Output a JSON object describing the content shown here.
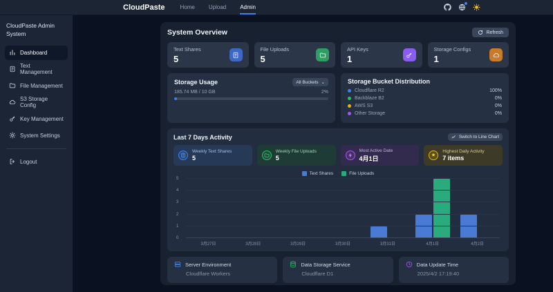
{
  "topnav": {
    "brand": "CloudPaste",
    "links": [
      {
        "label": "Home",
        "active": false
      },
      {
        "label": "Upload",
        "active": false
      },
      {
        "label": "Admin",
        "active": true
      }
    ],
    "icons": [
      "github-icon",
      "language-icon",
      "theme-sun-icon"
    ],
    "accent_color": "#3b82f6"
  },
  "sidebar": {
    "title": "CloudPaste Admin System",
    "items": [
      {
        "label": "Dashboard",
        "icon": "chart-bar-icon",
        "active": true
      },
      {
        "label": "Text Management",
        "icon": "document-icon",
        "active": false
      },
      {
        "label": "File Management",
        "icon": "folder-icon",
        "active": false
      },
      {
        "label": "S3 Storage Config",
        "icon": "cloud-icon",
        "active": false
      },
      {
        "label": "Key Management",
        "icon": "key-icon",
        "active": false
      },
      {
        "label": "System Settings",
        "icon": "gear-icon",
        "active": false
      }
    ],
    "logout_label": "Logout"
  },
  "overview": {
    "title": "System Overview",
    "refresh_label": "Refresh",
    "stats": [
      {
        "label": "Text Shares",
        "value": "5",
        "icon": "document-icon",
        "color": "#3e68c6"
      },
      {
        "label": "File Uploads",
        "value": "5",
        "icon": "folder-icon",
        "color": "#2f9e63"
      },
      {
        "label": "API Keys",
        "value": "1",
        "icon": "key-icon",
        "color": "#8a5cf0"
      },
      {
        "label": "Storage Configs",
        "value": "1",
        "icon": "cloud-icon",
        "color": "#c77b2b"
      }
    ]
  },
  "storage_usage": {
    "title": "Storage Usage",
    "bucket_filter": "All Buckets",
    "usage_text": "185.74 MB / 10 GB",
    "percent": 2,
    "percent_label": "2%"
  },
  "bucket_distribution": {
    "title": "Storage Bucket Distribution",
    "rows": [
      {
        "name": "Cloudflare R2",
        "percent": "100%",
        "color": "#3b82f6"
      },
      {
        "name": "Backblaze B2",
        "percent": "0%",
        "color": "#22c55e"
      },
      {
        "name": "AWS S3",
        "percent": "0%",
        "color": "#eab308"
      },
      {
        "name": "Other Storage",
        "percent": "0%",
        "color": "#a855f7"
      }
    ]
  },
  "activity": {
    "title": "Last 7 Days Activity",
    "switch_label": "Switch to Line Chart",
    "cards": [
      {
        "label": "Weekly Text Shares",
        "value": "5",
        "theme": "blue",
        "icon": "document-icon"
      },
      {
        "label": "Weekly File Uploads",
        "value": "5",
        "theme": "green",
        "icon": "folder-icon"
      },
      {
        "label": "Most Active Date",
        "value": "4月1日",
        "theme": "purple",
        "icon": "lightning-icon"
      },
      {
        "label": "Highest Daily Activity",
        "value": "7 items",
        "theme": "yellow",
        "icon": "trophy-icon"
      }
    ]
  },
  "chart_data": {
    "type": "bar",
    "title": "Last 7 Days Activity",
    "categories": [
      "3月27日",
      "3月28日",
      "3月29日",
      "3月30日",
      "3月31日",
      "4月1日",
      "4月2日"
    ],
    "series": [
      {
        "name": "Text Shares",
        "color": "#4a7bd4",
        "values": [
          0,
          0,
          0,
          0,
          1,
          2,
          2
        ]
      },
      {
        "name": "File Uploads",
        "color": "#2aab7e",
        "values": [
          0,
          0,
          0,
          0,
          0,
          5,
          0
        ]
      }
    ],
    "xlabel": "",
    "ylabel": "",
    "ylim": [
      0,
      5
    ],
    "yticks": [
      0,
      1,
      2,
      3,
      4,
      5
    ],
    "grid": true,
    "legend_position": "top"
  },
  "footer_cards": [
    {
      "label": "Server Environment",
      "value": "Cloudflare Workers",
      "icon": "server-icon",
      "color": "#3b82f6"
    },
    {
      "label": "Data Storage Service",
      "value": "Cloudflare D1",
      "icon": "database-icon",
      "color": "#22c55e"
    },
    {
      "label": "Data Update Time",
      "value": "2025/4/2 17:19:40",
      "icon": "clock-icon",
      "color": "#a855f7"
    }
  ]
}
